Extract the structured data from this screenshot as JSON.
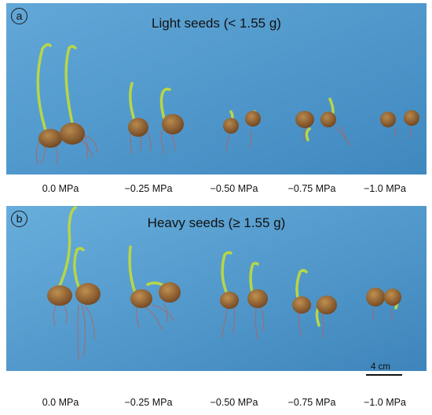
{
  "panel_a": {
    "letter": "a",
    "title": "Light seeds (< 1.55 g)",
    "labels": [
      "0.0 MPa",
      "−0.25 MPa",
      "−0.50 MPa",
      "−0.75 MPa",
      "−1.0 MPa"
    ]
  },
  "panel_b": {
    "letter": "b",
    "title": "Heavy seeds (≥ 1.55 g)",
    "labels": [
      "0.0 MPa",
      "−0.25 MPa",
      "−0.50 MPa",
      "−0.75 MPa",
      "−1.0 MPa"
    ]
  },
  "scale_bar": {
    "label": "4 cm"
  },
  "colors": {
    "background_blue": "#4f98cc",
    "seed_brown": "#8a5a2c",
    "shoot_green": "#b8d646",
    "root_red": "#b6625a"
  }
}
